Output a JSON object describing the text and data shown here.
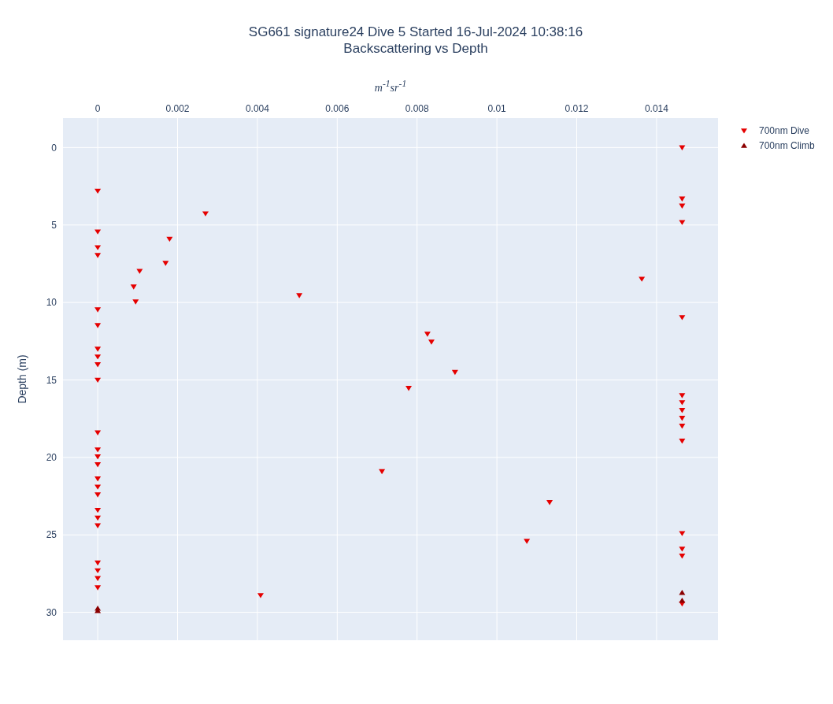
{
  "chart_data": {
    "type": "scatter",
    "title": "SG661 signature24 Dive 5 Started 16-Jul-2024 10:38:16",
    "subtitle": "Backscattering vs Depth",
    "xlabel": "m$^{-1}$sr$^{-1}$",
    "ylabel": "Depth (m)",
    "xlim": [
      -0.00087,
      0.01554
    ],
    "xticks": [
      0,
      0.002,
      0.004,
      0.006,
      0.008,
      0.01,
      0.012,
      0.014
    ],
    "ylim": [
      31.8,
      -1.9
    ],
    "yticks": [
      0,
      5,
      10,
      15,
      20,
      25,
      30
    ],
    "grid": true,
    "legend": "top right",
    "series": [
      {
        "name": "700nm Dive",
        "color": "#e50000",
        "marker": "triangle-down",
        "x": [
          0.01464,
          0,
          0.01464,
          0.01464,
          0.0027,
          0.01464,
          0,
          0.0018,
          0,
          0,
          0.0017,
          0.00105,
          0.01363,
          0.0009,
          0.00505,
          0.00095,
          0,
          0.01464,
          0,
          0.00826,
          0.00836,
          0,
          0,
          0,
          0.00895,
          0,
          0.00779,
          0.01464,
          0.01464,
          0.01464,
          0.01464,
          0.01464,
          0,
          0.01464,
          0,
          0,
          0,
          0.00712,
          0,
          0,
          0,
          0.01132,
          0,
          0,
          0,
          0.01464,
          0.01075,
          0.01464,
          0.01464,
          0,
          0,
          0,
          0,
          0.00408,
          0.01464
        ],
        "values": [
          0,
          2.8,
          3.3,
          3.76,
          4.26,
          4.82,
          5.43,
          5.9,
          6.45,
          6.95,
          7.46,
          7.97,
          8.48,
          8.98,
          9.54,
          9.95,
          10.46,
          10.96,
          11.47,
          12.03,
          12.54,
          13.0,
          13.5,
          14.0,
          14.5,
          15.0,
          15.53,
          16.0,
          16.45,
          16.95,
          17.46,
          17.97,
          18.4,
          18.93,
          19.5,
          19.95,
          20.46,
          20.9,
          21.37,
          21.9,
          22.4,
          22.9,
          23.4,
          23.9,
          24.4,
          24.9,
          25.4,
          25.9,
          26.35,
          26.8,
          27.3,
          27.8,
          28.4,
          28.9,
          29.44
        ]
      },
      {
        "name": "700nm Climb",
        "color": "#8b0000",
        "marker": "triangle-up",
        "x": [
          0.01464,
          0.01464,
          0,
          0
        ],
        "values": [
          28.73,
          29.24,
          29.75,
          29.9
        ]
      }
    ]
  }
}
